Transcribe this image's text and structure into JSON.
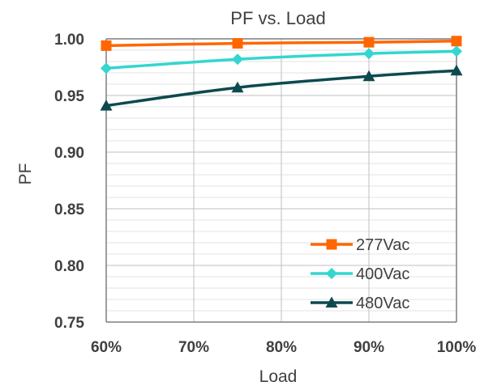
{
  "chart_data": {
    "type": "line",
    "title": "PF vs. Load",
    "xlabel": "Load",
    "ylabel": "PF",
    "x": [
      60,
      75,
      90,
      100
    ],
    "xlim": [
      60,
      100
    ],
    "ylim": [
      0.75,
      1.0
    ],
    "x_ticks": [
      "60%",
      "70%",
      "80%",
      "90%",
      "100%"
    ],
    "y_ticks": [
      "0.75",
      "0.80",
      "0.85",
      "0.90",
      "0.95",
      "1.00"
    ],
    "grid": true,
    "legend_position": "bottom-right",
    "series": [
      {
        "name": "277Vac",
        "color": "#ff6600",
        "marker": "square",
        "values": [
          0.994,
          0.996,
          0.997,
          0.998
        ]
      },
      {
        "name": "400Vac",
        "color": "#33d6d0",
        "marker": "diamond",
        "values": [
          0.974,
          0.982,
          0.987,
          0.989
        ]
      },
      {
        "name": "480Vac",
        "color": "#0d4a4f",
        "marker": "triangle",
        "values": [
          0.941,
          0.957,
          0.967,
          0.972
        ]
      }
    ]
  }
}
